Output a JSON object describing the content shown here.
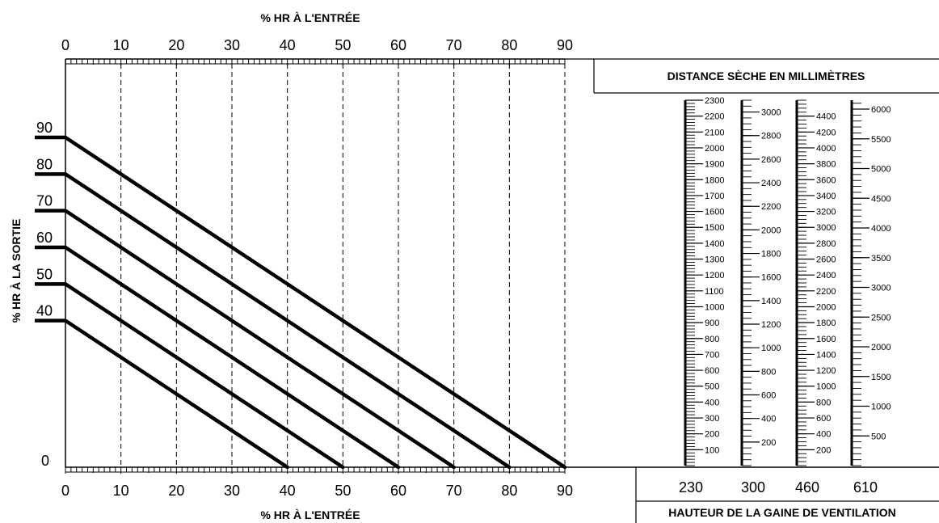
{
  "chart_data": {
    "type": "line",
    "top_xlabel": "% HR À L'ENTRÉE",
    "bottom_xlabel": "% HR À L'ENTRÉE",
    "ylabel": "% HR À LA SORTIE",
    "x_ticks": [
      "0",
      "10",
      "20",
      "30",
      "40",
      "50",
      "60",
      "70",
      "80",
      "90"
    ],
    "y_labels": [
      "90",
      "80",
      "70",
      "60",
      "50",
      "40",
      "0"
    ],
    "xlim": [
      0,
      90
    ],
    "ylim": [
      0,
      90
    ],
    "series": [
      {
        "x": [
          0,
          90
        ],
        "y": [
          90,
          0
        ]
      },
      {
        "x": [
          0,
          80
        ],
        "y": [
          80,
          0
        ]
      },
      {
        "x": [
          0,
          70
        ],
        "y": [
          70,
          0
        ]
      },
      {
        "x": [
          0,
          60
        ],
        "y": [
          60,
          0
        ]
      },
      {
        "x": [
          0,
          50
        ],
        "y": [
          50,
          0
        ]
      },
      {
        "x": [
          0,
          40
        ],
        "y": [
          40,
          0
        ]
      }
    ]
  },
  "right_panel": {
    "top_title": "DISTANCE SÈCHE EN MILLIMÈTRES",
    "bottom_title": "HAUTEUR DE LA GAINE DE VENTILATION",
    "duct_heights": [
      "230",
      "300",
      "460",
      "610"
    ],
    "scales": [
      {
        "duct": "230",
        "max": 2300,
        "labels": [
          "2300",
          "2200",
          "2100",
          "2000",
          "1900",
          "1800",
          "1700",
          "1600",
          "1500",
          "1400",
          "1300",
          "1200",
          "1100",
          "1000",
          "900",
          "800",
          "700",
          "600",
          "500",
          "400",
          "300",
          "200",
          "100"
        ]
      },
      {
        "duct": "300",
        "max": 3100,
        "labels": [
          "3000",
          "2800",
          "2600",
          "2400",
          "2200",
          "2000",
          "1800",
          "1600",
          "1400",
          "1200",
          "1000",
          "800",
          "600",
          "400",
          "200"
        ]
      },
      {
        "duct": "460",
        "max": 4500,
        "labels": [
          "4400",
          "4200",
          "4000",
          "3800",
          "3600",
          "3400",
          "3200",
          "3000",
          "2800",
          "2600",
          "2400",
          "2200",
          "2000",
          "1800",
          "1600",
          "1400",
          "1200",
          "1000",
          "800",
          "600",
          "400",
          "200"
        ]
      },
      {
        "duct": "610",
        "max": 6100,
        "labels": [
          "6000",
          "5500",
          "5000",
          "4500",
          "4000",
          "3500",
          "3000",
          "2500",
          "2000",
          "1500",
          "1000",
          "500"
        ]
      }
    ]
  }
}
